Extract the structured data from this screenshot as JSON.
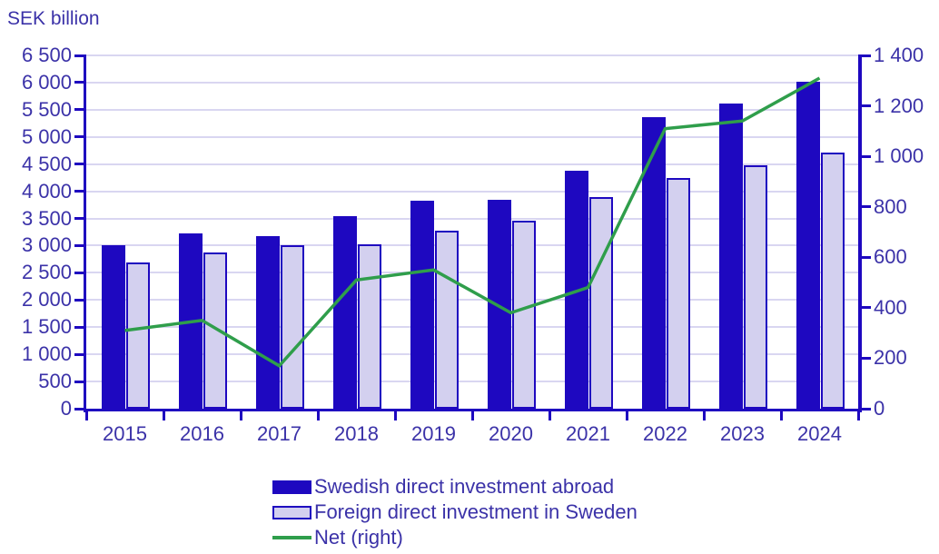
{
  "chart": {
    "title": "SEK billion",
    "colors": {
      "background": "#ffffff",
      "bar_dark": "#1e08c0",
      "bar_light_fill": "#d3d0ef",
      "bar_light_border": "#1e08c0",
      "line_green": "#2f9e4b",
      "axis": "#1e08c0",
      "gridline": "#d9d6f1",
      "text": "#3b32a8"
    }
  },
  "chart_data": {
    "type": "bar+line",
    "title": "SEK billion",
    "categories": [
      "2015",
      "2016",
      "2017",
      "2018",
      "2019",
      "2020",
      "2021",
      "2022",
      "2023",
      "2024"
    ],
    "series": [
      {
        "name": "Swedish direct investment abroad",
        "type": "bar",
        "axis": "left",
        "values": [
          3000,
          3220,
          3170,
          3540,
          3830,
          3840,
          4380,
          5360,
          5620,
          6020
        ]
      },
      {
        "name": "Foreign direct investment in Sweden",
        "type": "bar",
        "axis": "left",
        "values": [
          2690,
          2870,
          3000,
          3030,
          3280,
          3460,
          3900,
          4250,
          4480,
          4710
        ]
      },
      {
        "name": "Net (right)",
        "type": "line",
        "axis": "right",
        "values": [
          310,
          350,
          170,
          510,
          550,
          380,
          480,
          1110,
          1140,
          1310
        ]
      }
    ],
    "left_axis": {
      "min": 0,
      "max": 6500,
      "step": 500,
      "tick_labels": [
        "0",
        "500",
        "1 000",
        "1 500",
        "2 000",
        "2 500",
        "3 000",
        "3 500",
        "4 000",
        "4 500",
        "5 000",
        "5 500",
        "6 000",
        "6 500"
      ]
    },
    "right_axis": {
      "min": 0,
      "max": 1400,
      "step": 200,
      "tick_labels": [
        "0",
        "200",
        "400",
        "600",
        "800",
        "1 000",
        "1 200",
        "1 400"
      ]
    },
    "grid": true,
    "legend_position": "bottom"
  }
}
